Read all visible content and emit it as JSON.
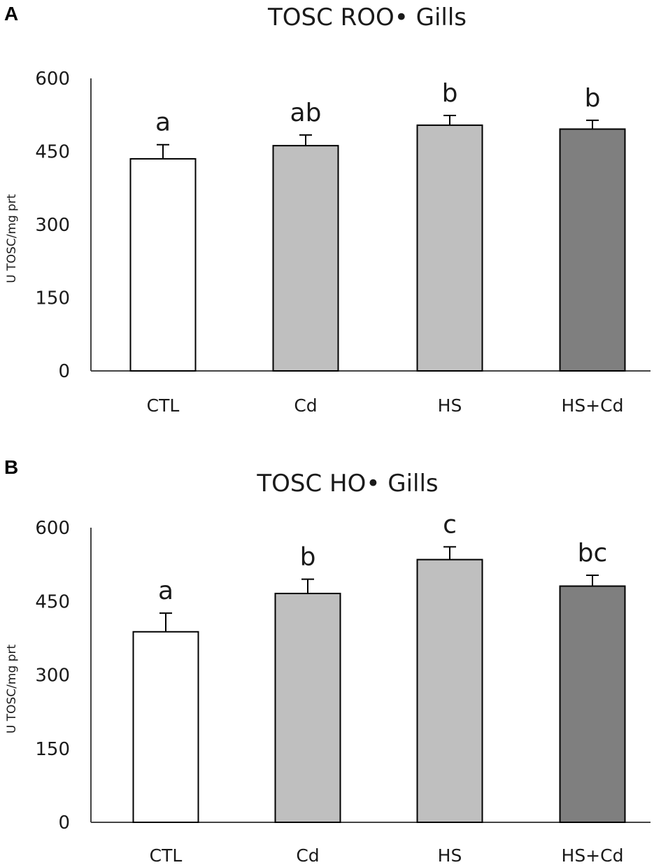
{
  "chart_data": [
    {
      "panel": "A",
      "type": "bar",
      "title": "TOSC ROO• Gills",
      "xlabel": "",
      "ylabel": "U TOSC/mg prt",
      "ylim": [
        0,
        600
      ],
      "yticks": [
        "0",
        "150",
        "300",
        "450",
        "600"
      ],
      "categories": [
        "CTL",
        "Cd",
        "HS",
        "HS+Cd"
      ],
      "values": [
        435,
        462,
        504,
        496
      ],
      "errors": [
        29,
        22,
        20,
        18
      ],
      "significance": [
        "a",
        "ab",
        "b",
        "b"
      ],
      "colors": [
        "#ffffff",
        "#bfbfbf",
        "#bfbfbf",
        "#7f7f7f"
      ]
    },
    {
      "panel": "B",
      "type": "bar",
      "title": "TOSC HO• Gills",
      "xlabel": "",
      "ylabel": "U TOSC/mg prt",
      "ylim": [
        0,
        600
      ],
      "yticks": [
        "0",
        "150",
        "300",
        "450",
        "600"
      ],
      "categories": [
        "CTL",
        "Cd",
        "HS",
        "HS+Cd"
      ],
      "values": [
        388,
        466,
        535,
        481
      ],
      "errors": [
        38,
        29,
        26,
        22
      ],
      "significance": [
        "a",
        "b",
        "c",
        "bc"
      ],
      "colors": [
        "#ffffff",
        "#bfbfbf",
        "#bfbfbf",
        "#7f7f7f"
      ]
    }
  ]
}
